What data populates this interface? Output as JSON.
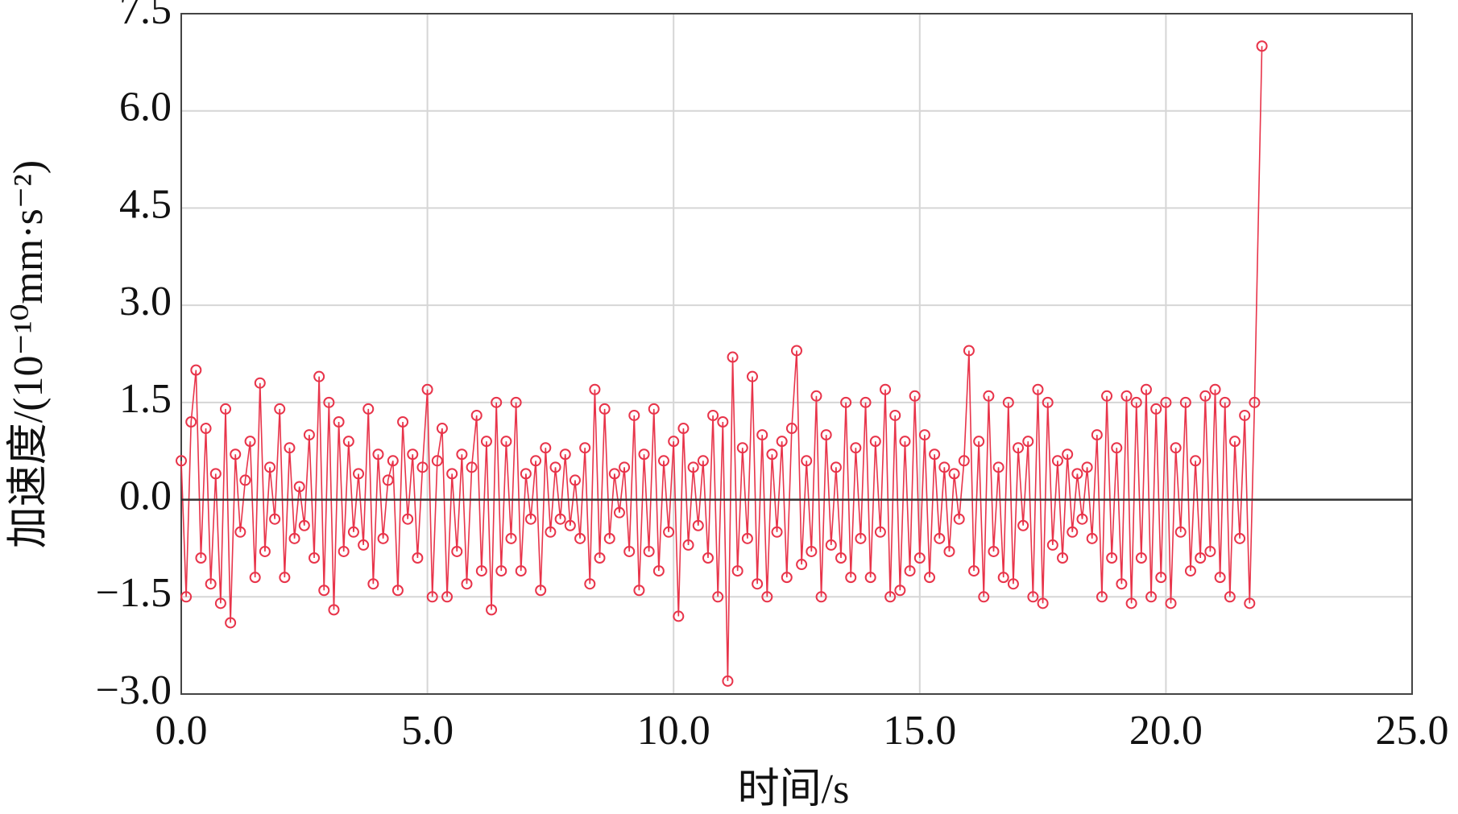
{
  "chart_data": {
    "type": "stem",
    "xlabel": "时间/s",
    "ylabel": "加速度/(10⁻¹⁰mm·s⁻²)",
    "xlim": [
      0,
      25
    ],
    "ylim": [
      -3.0,
      7.5
    ],
    "xticks": [
      {
        "value": 0,
        "label": "0.0"
      },
      {
        "value": 5,
        "label": "5.0"
      },
      {
        "value": 10,
        "label": "10.0"
      },
      {
        "value": 15,
        "label": "15.0"
      },
      {
        "value": 20,
        "label": "20.0"
      },
      {
        "value": 25,
        "label": "25.0"
      }
    ],
    "yticks": [
      {
        "value": -3,
        "label": "−3.0"
      },
      {
        "value": -1.5,
        "label": "−1.5"
      },
      {
        "value": 0,
        "label": "0.0"
      },
      {
        "value": 1.5,
        "label": "1.5"
      },
      {
        "value": 3,
        "label": "3.0"
      },
      {
        "value": 4.5,
        "label": "4.5"
      },
      {
        "value": 6,
        "label": "6.0"
      },
      {
        "value": 7.5,
        "label": "7.5"
      }
    ],
    "grid": true,
    "series": [
      {
        "color": "#e8344a",
        "x": [
          0.0,
          0.1,
          0.2,
          0.3,
          0.4,
          0.5,
          0.6,
          0.7,
          0.8,
          0.9,
          1.0,
          1.1,
          1.2,
          1.3,
          1.4,
          1.5,
          1.6,
          1.7,
          1.8,
          1.9,
          2.0,
          2.1,
          2.2,
          2.3,
          2.4,
          2.5,
          2.6,
          2.7,
          2.8,
          2.9,
          3.0,
          3.1,
          3.2,
          3.3,
          3.4,
          3.5,
          3.6,
          3.7,
          3.8,
          3.9,
          4.0,
          4.1,
          4.2,
          4.3,
          4.4,
          4.5,
          4.6,
          4.7,
          4.8,
          4.9,
          5.0,
          5.1,
          5.2,
          5.3,
          5.4,
          5.5,
          5.6,
          5.7,
          5.8,
          5.9,
          6.0,
          6.1,
          6.2,
          6.3,
          6.4,
          6.5,
          6.6,
          6.7,
          6.8,
          6.9,
          7.0,
          7.1,
          7.2,
          7.3,
          7.4,
          7.5,
          7.6,
          7.7,
          7.8,
          7.9,
          8.0,
          8.1,
          8.2,
          8.3,
          8.4,
          8.5,
          8.6,
          8.7,
          8.8,
          8.9,
          9.0,
          9.1,
          9.2,
          9.3,
          9.4,
          9.5,
          9.6,
          9.7,
          9.8,
          9.9,
          10.0,
          10.1,
          10.2,
          10.3,
          10.4,
          10.5,
          10.6,
          10.7,
          10.8,
          10.9,
          11.0,
          11.1,
          11.2,
          11.3,
          11.4,
          11.5,
          11.6,
          11.7,
          11.8,
          11.9,
          12.0,
          12.1,
          12.2,
          12.3,
          12.4,
          12.5,
          12.6,
          12.7,
          12.8,
          12.9,
          13.0,
          13.1,
          13.2,
          13.3,
          13.4,
          13.5,
          13.6,
          13.7,
          13.8,
          13.9,
          14.0,
          14.1,
          14.2,
          14.3,
          14.4,
          14.5,
          14.6,
          14.7,
          14.8,
          14.9,
          15.0,
          15.1,
          15.2,
          15.3,
          15.4,
          15.5,
          15.6,
          15.7,
          15.8,
          15.9,
          16.0,
          16.1,
          16.2,
          16.3,
          16.4,
          16.5,
          16.6,
          16.7,
          16.8,
          16.9,
          17.0,
          17.1,
          17.2,
          17.3,
          17.4,
          17.5,
          17.6,
          17.7,
          17.8,
          17.9,
          18.0,
          18.1,
          18.2,
          18.3,
          18.4,
          18.5,
          18.6,
          18.7,
          18.8,
          18.9,
          19.0,
          19.1,
          19.2,
          19.3,
          19.4,
          19.5,
          19.6,
          19.7,
          19.8,
          19.9,
          20.0,
          20.1,
          20.2,
          20.3,
          20.4,
          20.5,
          20.6,
          20.7,
          20.8,
          20.9,
          21.0,
          21.1,
          21.2,
          21.3,
          21.4,
          21.5,
          21.6,
          21.7,
          21.8,
          21.95
        ],
        "values": [
          0.6,
          -1.5,
          1.2,
          2.0,
          -0.9,
          1.1,
          -1.3,
          0.4,
          -1.6,
          1.4,
          -1.9,
          0.7,
          -0.5,
          0.3,
          0.9,
          -1.2,
          1.8,
          -0.8,
          0.5,
          -0.3,
          1.4,
          -1.2,
          0.8,
          -0.6,
          0.2,
          -0.4,
          1.0,
          -0.9,
          1.9,
          -1.4,
          1.5,
          -1.7,
          1.2,
          -0.8,
          0.9,
          -0.5,
          0.4,
          -0.7,
          1.4,
          -1.3,
          0.7,
          -0.6,
          0.3,
          0.6,
          -1.4,
          1.2,
          -0.3,
          0.7,
          -0.9,
          0.5,
          1.7,
          -1.5,
          0.6,
          1.1,
          -1.5,
          0.4,
          -0.8,
          0.7,
          -1.3,
          0.5,
          1.3,
          -1.1,
          0.9,
          -1.7,
          1.5,
          -1.1,
          0.9,
          -0.6,
          1.5,
          -1.1,
          0.4,
          -0.3,
          0.6,
          -1.4,
          0.8,
          -0.5,
          0.5,
          -0.3,
          0.7,
          -0.4,
          0.3,
          -0.6,
          0.8,
          -1.3,
          1.7,
          -0.9,
          1.4,
          -0.6,
          0.4,
          -0.2,
          0.5,
          -0.8,
          1.3,
          -1.4,
          0.7,
          -0.8,
          1.4,
          -1.1,
          0.6,
          -0.5,
          0.9,
          -1.8,
          1.1,
          -0.7,
          0.5,
          -0.4,
          0.6,
          -0.9,
          1.3,
          -1.5,
          1.2,
          -2.8,
          2.2,
          -1.1,
          0.8,
          -0.6,
          1.9,
          -1.3,
          1.0,
          -1.5,
          0.7,
          -0.5,
          0.9,
          -1.2,
          1.1,
          2.3,
          -1.0,
          0.6,
          -0.8,
          1.6,
          -1.5,
          1.0,
          -0.7,
          0.5,
          -0.9,
          1.5,
          -1.2,
          0.8,
          -0.6,
          1.5,
          -1.2,
          0.9,
          -0.5,
          1.7,
          -1.5,
          1.3,
          -1.4,
          0.9,
          -1.1,
          1.6,
          -0.9,
          1.0,
          -1.2,
          0.7,
          -0.6,
          0.5,
          -0.8,
          0.4,
          -0.3,
          0.6,
          2.3,
          -1.1,
          0.9,
          -1.5,
          1.6,
          -0.8,
          0.5,
          -1.2,
          1.5,
          -1.3,
          0.8,
          -0.4,
          0.9,
          -1.5,
          1.7,
          -1.6,
          1.5,
          -0.7,
          0.6,
          -0.9,
          0.7,
          -0.5,
          0.4,
          -0.3,
          0.5,
          -0.6,
          1.0,
          -1.5,
          1.6,
          -0.9,
          0.8,
          -1.3,
          1.6,
          -1.6,
          1.5,
          -0.9,
          1.7,
          -1.5,
          1.4,
          -1.2,
          1.5,
          -1.6,
          0.8,
          -0.5,
          1.5,
          -1.1,
          0.6,
          -0.9,
          1.6,
          -0.8,
          1.7,
          -1.2,
          1.5,
          -1.5,
          0.9,
          -0.6,
          1.3,
          -1.6,
          1.5,
          7.0
        ]
      }
    ]
  }
}
